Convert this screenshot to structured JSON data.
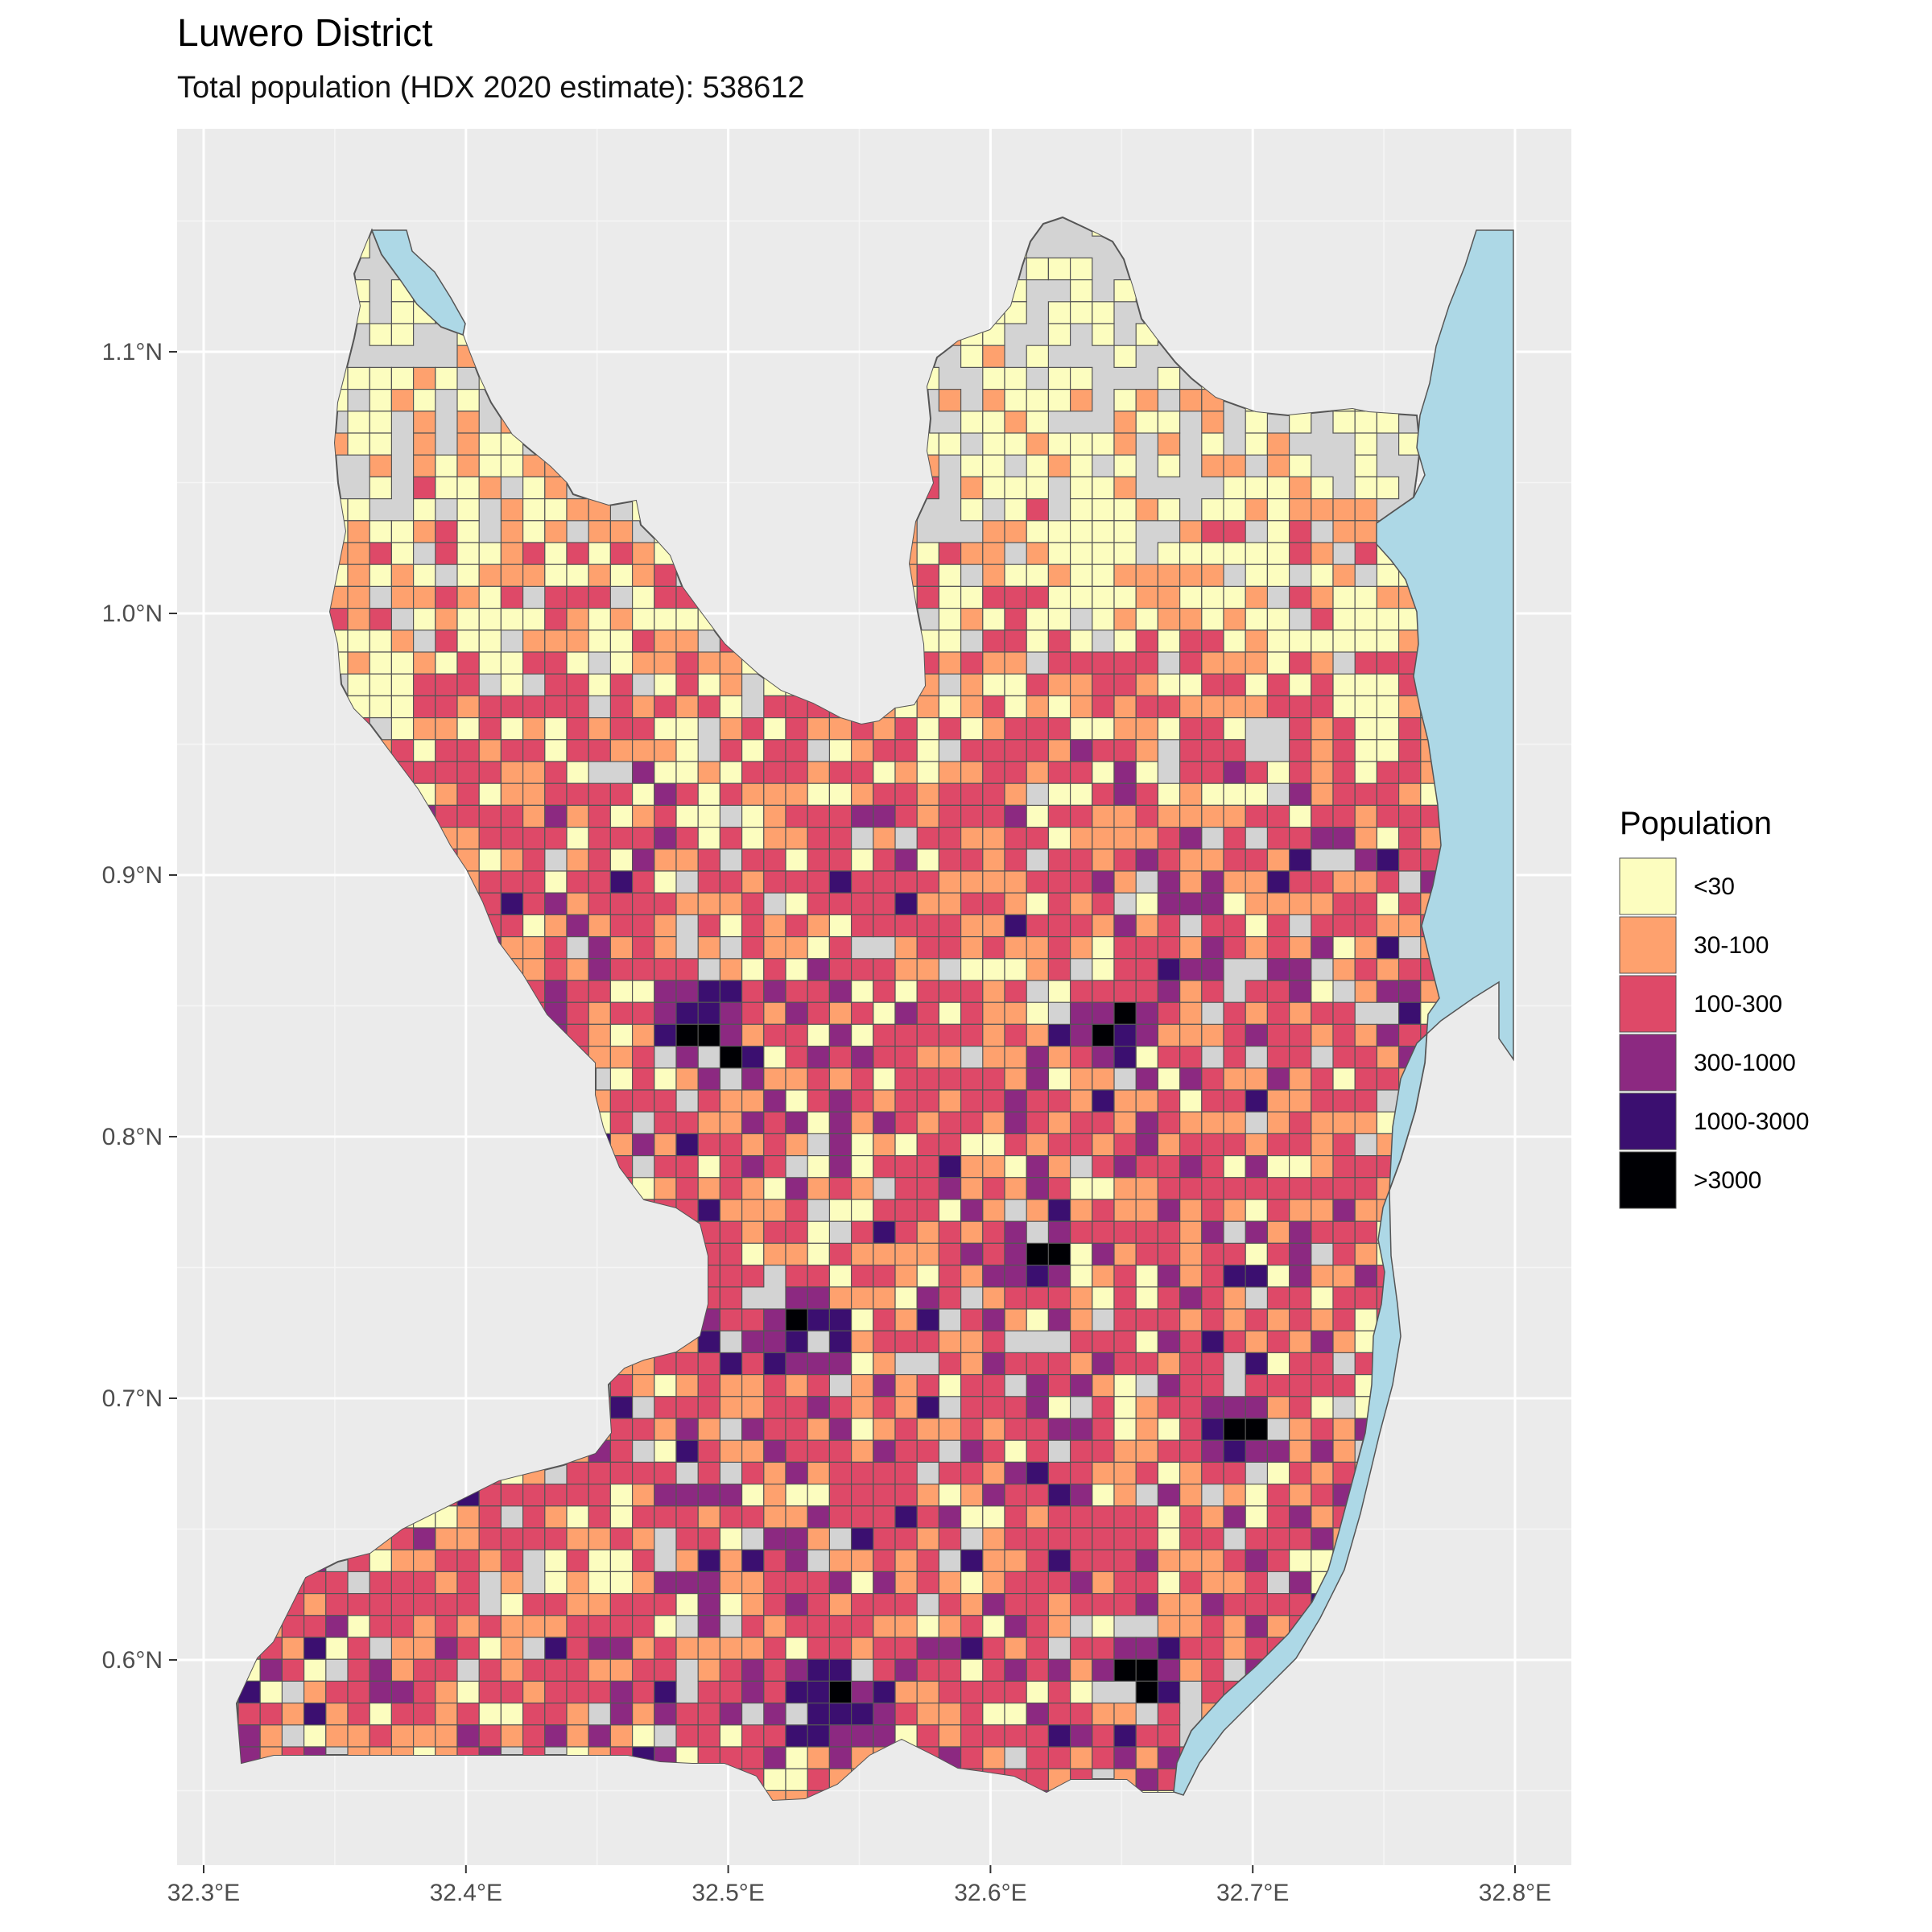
{
  "title": "Luwero District",
  "subtitle": "Total population (HDX 2020 estimate): 538612",
  "chart_data": {
    "type": "heatmap",
    "description_kind": "gridded population choropleth map",
    "x_ticks": [
      {
        "value": 32.3,
        "label": "32.3°E"
      },
      {
        "value": 32.4,
        "label": "32.4°E"
      },
      {
        "value": 32.5,
        "label": "32.5°E"
      },
      {
        "value": 32.6,
        "label": "32.6°E"
      },
      {
        "value": 32.7,
        "label": "32.7°E"
      },
      {
        "value": 32.8,
        "label": "32.8°E"
      }
    ],
    "y_ticks": [
      {
        "value": 0.6,
        "label": "0.6°N"
      },
      {
        "value": 0.7,
        "label": "0.7°N"
      },
      {
        "value": 0.8,
        "label": "0.8°N"
      },
      {
        "value": 0.9,
        "label": "0.9°N"
      },
      {
        "value": 1.0,
        "label": "1.0°N"
      },
      {
        "value": 1.1,
        "label": "1.1°N"
      }
    ],
    "xlim": [
      32.29,
      32.82
    ],
    "ylim": [
      0.52,
      1.17
    ],
    "grid": true,
    "legend": {
      "title": "Population",
      "position": "right",
      "classes": [
        {
          "label": "<30",
          "color": "#FCFDBF"
        },
        {
          "label": "30-100",
          "color": "#FEA16E"
        },
        {
          "label": "100-300",
          "color": "#DE4968"
        },
        {
          "label": "300-1000",
          "color": "#8C2981"
        },
        {
          "label": "1000-3000",
          "color": "#3B0F70"
        },
        {
          "label": ">3000",
          "color": "#000004"
        }
      ]
    },
    "district_fill": "#D3D3D3",
    "water_fill": "#ADD8E6",
    "panel_background": "#EBEBEB"
  }
}
